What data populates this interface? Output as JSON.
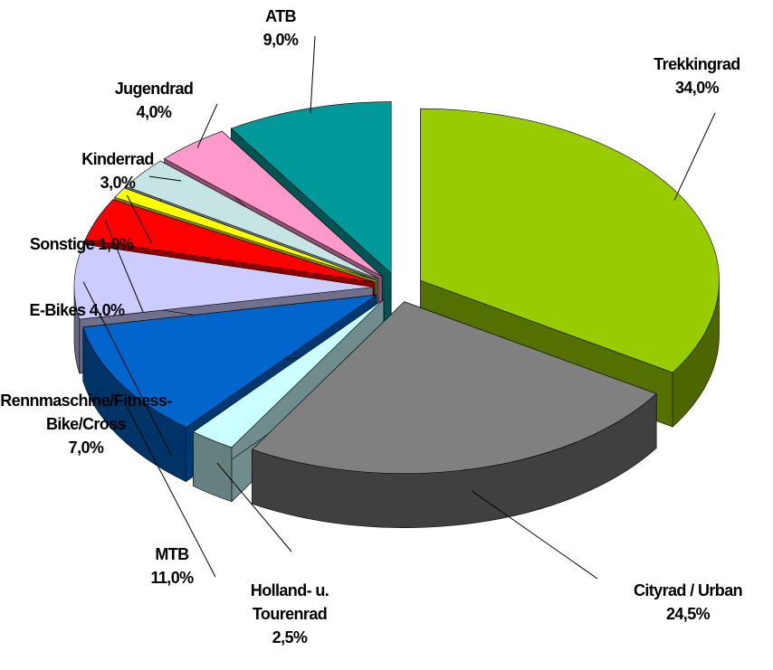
{
  "chart_data": {
    "type": "pie",
    "categories": [
      "Trekkingrad",
      "Cityrad / Urban",
      "Holland- u. Tourenrad",
      "MTB",
      "Rennmaschine/Fitness-Bike/Cross",
      "E-Bikes",
      "Sonstige",
      "Kinderrad",
      "Jugendrad",
      "ATB"
    ],
    "values": [
      34.0,
      24.5,
      2.5,
      11.0,
      7.0,
      4.0,
      1.0,
      3.0,
      4.0,
      9.0
    ],
    "value_labels": [
      "34,0%",
      "24,5%",
      "2,5%",
      "11,0%",
      "7,0%",
      "4,0%",
      "1,0%",
      "3,0%",
      "4,0%",
      "9,0%"
    ],
    "colors": [
      "#99cc00",
      "#808080",
      "#ccffff",
      "#0066cc",
      "#ccccff",
      "#ff0000",
      "#ffff00",
      "#c6e4e4",
      "#ff99cc",
      "#009999"
    ]
  }
}
